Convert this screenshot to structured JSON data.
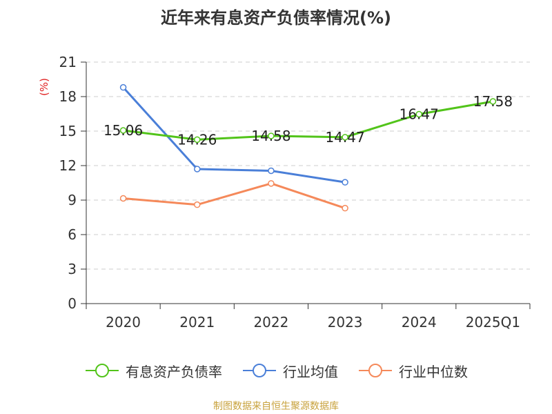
{
  "chart_data": {
    "type": "line",
    "title": "近年来有息资产负债率情况(%)",
    "ylabel": "(%)",
    "xlabel": "",
    "categories": [
      "2020",
      "2021",
      "2022",
      "2023",
      "2024",
      "2025Q1"
    ],
    "ylim": [
      0,
      21
    ],
    "yticks": [
      0,
      3,
      6,
      9,
      12,
      15,
      18,
      21
    ],
    "grid": true,
    "legend_position": "bottom",
    "series": [
      {
        "name": "有息资产负债率",
        "color": "#52c41a",
        "values": [
          15.06,
          14.26,
          14.58,
          14.47,
          16.47,
          17.58
        ],
        "data_labels": [
          "15.06",
          "14.26",
          "14.58",
          "14.47",
          "16.47",
          "17.58"
        ]
      },
      {
        "name": "行业均值",
        "color": "#4a7fd8",
        "values": [
          18.8,
          11.7,
          11.55,
          10.55,
          null,
          null
        ]
      },
      {
        "name": "行业中位数",
        "color": "#f5895a",
        "values": [
          9.15,
          8.6,
          10.45,
          8.3,
          null,
          null
        ]
      }
    ]
  },
  "source": "制图数据来自恒生聚源数据库"
}
